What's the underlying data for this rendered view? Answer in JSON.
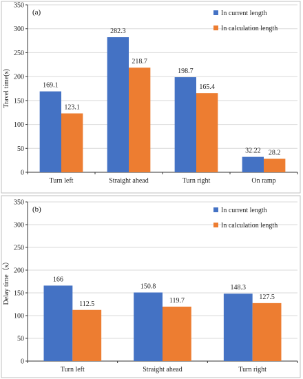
{
  "chart_data": [
    {
      "panel_label": "(a)",
      "type": "bar",
      "categories": [
        "Turn left",
        "Straight ahead",
        "Turn right",
        "On ramp"
      ],
      "series": [
        {
          "name": "In current length",
          "values": [
            169.1,
            282.3,
            198.7,
            32.22
          ],
          "labels": [
            "169.1",
            "282.3",
            "198.7",
            "32.22"
          ],
          "color": "#4472c4"
        },
        {
          "name": "In calculation length",
          "values": [
            123.1,
            218.7,
            165.4,
            28.2
          ],
          "labels": [
            "123.1",
            "218.7",
            "165.4",
            "28.2"
          ],
          "color": "#ed7d31"
        }
      ],
      "ylabel": "Travel time(s)",
      "ylim": [
        0,
        350
      ],
      "yticks": [
        0,
        50,
        100,
        150,
        200,
        250,
        300,
        350
      ],
      "grid": true,
      "legend": "top-right"
    },
    {
      "panel_label": "(b)",
      "type": "bar",
      "categories": [
        "Turn left",
        "Straight ahead",
        "Turn right"
      ],
      "series": [
        {
          "name": "In current length",
          "values": [
            166,
            150.8,
            148.3
          ],
          "labels": [
            "166",
            "150.8",
            "148.3"
          ],
          "color": "#4472c4"
        },
        {
          "name": "In calculation length",
          "values": [
            112.5,
            119.7,
            127.5
          ],
          "labels": [
            "112.5",
            "119.7",
            "127.5"
          ],
          "color": "#ed7d31"
        }
      ],
      "ylabel": "Delay time（s）",
      "ylim": [
        0,
        350
      ],
      "yticks": [
        0,
        50,
        100,
        150,
        200,
        250,
        300,
        350
      ],
      "grid": true,
      "legend": "top-right"
    }
  ]
}
